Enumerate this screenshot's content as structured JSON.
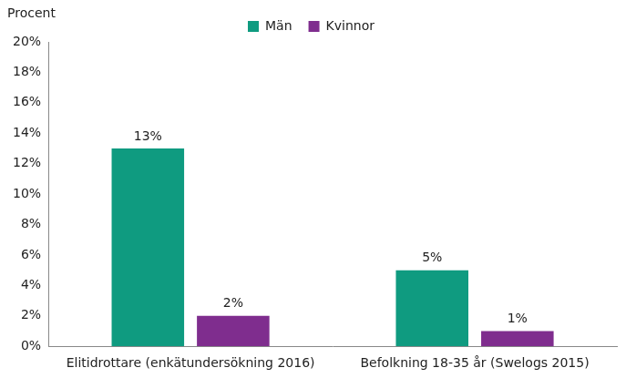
{
  "chart_data": {
    "type": "bar",
    "y_label": "Procent",
    "categories": [
      "Elitidrottare (enkätundersökning 2016)",
      "Befolkning 18-35 år (Swelogs 2015)"
    ],
    "series": [
      {
        "name": "Män",
        "color": "#0f9b80",
        "values": [
          13,
          5
        ],
        "value_labels": [
          "13%",
          "5%"
        ]
      },
      {
        "name": "Kvinnor",
        "color": "#7f2d8e",
        "values": [
          2,
          1
        ],
        "value_labels": [
          "2%",
          "1%"
        ]
      }
    ],
    "ylim": [
      0,
      20
    ],
    "yticks": [
      {
        "value": 0,
        "label": "0%"
      },
      {
        "value": 2,
        "label": "2%"
      },
      {
        "value": 4,
        "label": "4%"
      },
      {
        "value": 6,
        "label": "6%"
      },
      {
        "value": 8,
        "label": "8%"
      },
      {
        "value": 10,
        "label": "10%"
      },
      {
        "value": 12,
        "label": "12%"
      },
      {
        "value": 14,
        "label": "14%"
      },
      {
        "value": 16,
        "label": "16%"
      },
      {
        "value": 18,
        "label": "18%"
      },
      {
        "value": 20,
        "label": "20%"
      }
    ],
    "grid": false,
    "legend": "top",
    "data_labels": true
  }
}
